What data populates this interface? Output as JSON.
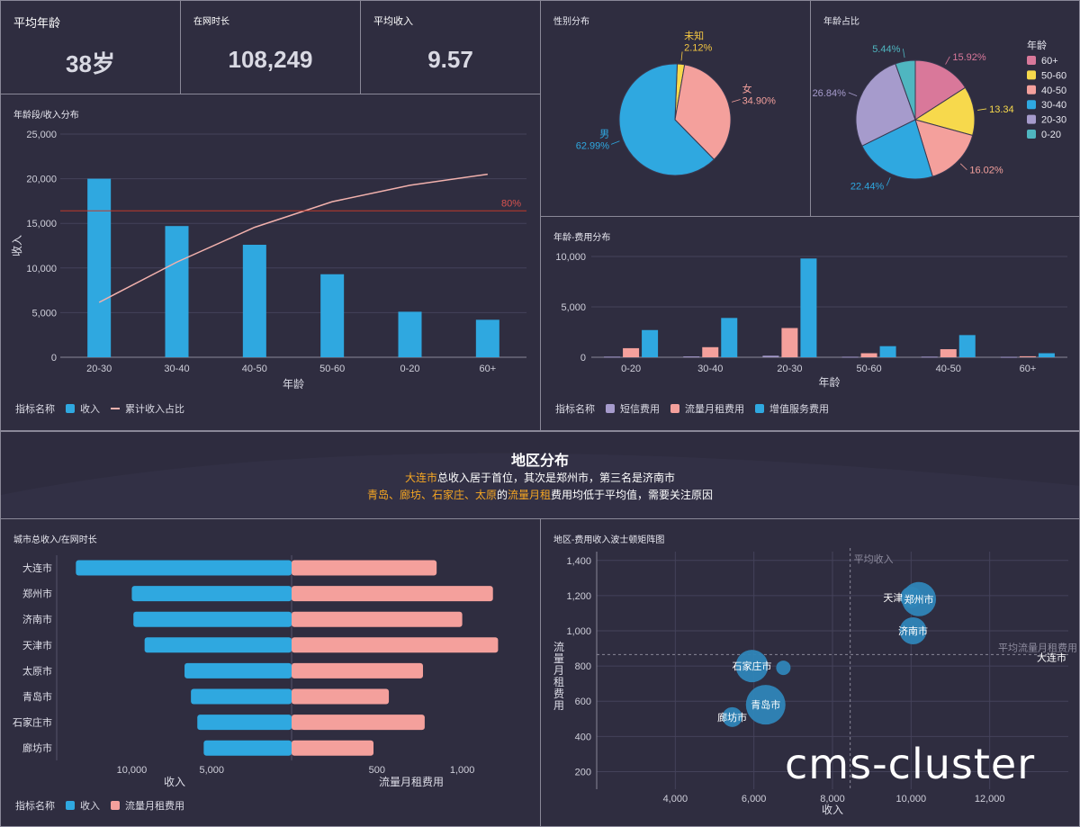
{
  "kpis": [
    {
      "label": "平均年龄",
      "value": "38岁"
    },
    {
      "label": "在网时长",
      "value": "108,249"
    },
    {
      "label": "平均收入",
      "value": "9.57"
    }
  ],
  "colors": {
    "blue": "#2fa8e0",
    "pink": "#f4a09c",
    "purple": "#a69bcc",
    "red": "#c0392b",
    "line": "#f2b1ad",
    "yellow": "#f7d94c",
    "rose": "#d9789a",
    "teal": "#4fb6c0",
    "orange": "#f5a623"
  },
  "panels": {
    "age_income": "年龄段/收入分布",
    "gender": "性别分布",
    "age_share": "年龄占比",
    "age_fee": "年龄-费用分布",
    "city_income": "城市总收入/在网时长",
    "region_matrix": "地区-费用收入波士顿矩阵图"
  },
  "banner": {
    "title": "地区分布",
    "line1_city": "大连市",
    "line1_rest": "总收入居于首位，其次是郑州市，第三名是济南市",
    "line2_cities": "青岛、廊坊、石家庄、太原",
    "line2_mid": "的",
    "line2_metric": "流量月租",
    "line2_rest": "费用均低于平均值，需要关注原因"
  },
  "watermark": "cms-cluster",
  "legends": {
    "title": "指标名称",
    "income": "收入",
    "cum_ratio": "累计收入占比",
    "sms": "短信费用",
    "data_rent": "流量月租费用",
    "vas": "增值服务费用"
  },
  "chart_data": [
    {
      "id": "age_income",
      "type": "bar",
      "categories": [
        "20-30",
        "30-40",
        "40-50",
        "50-60",
        "0-20",
        "60+"
      ],
      "series": [
        {
          "name": "收入",
          "values": [
            20000,
            14700,
            12600,
            9300,
            5100,
            4200
          ]
        },
        {
          "name": "累计收入占比",
          "type": "line",
          "values": [
            0.3,
            0.52,
            0.71,
            0.85,
            0.94,
            1.0
          ]
        }
      ],
      "threshold_label": "80%",
      "xlabel": "年龄",
      "ylabel": "收入",
      "yticks": [
        "0",
        "5,000",
        "10,000",
        "15,000",
        "20,000",
        "25,000"
      ],
      "ylim": [
        0,
        25000
      ]
    },
    {
      "id": "gender",
      "type": "pie",
      "slices": [
        {
          "label": "未知",
          "value": 2.12,
          "text": "2.12%"
        },
        {
          "label": "女",
          "value": 34.9,
          "text": "34.90%"
        },
        {
          "label": "男",
          "value": 62.99,
          "text": "62.99%"
        }
      ]
    },
    {
      "id": "age_share",
      "type": "pie",
      "legend_title": "年龄",
      "slices": [
        {
          "label": "60+",
          "value": 15.92,
          "text": "15.92%"
        },
        {
          "label": "50-60",
          "value": 13.34,
          "text": "13.34"
        },
        {
          "label": "40-50",
          "value": 16.02,
          "text": "16.02%"
        },
        {
          "label": "30-40",
          "value": 22.44,
          "text": "22.44%"
        },
        {
          "label": "20-30",
          "value": 26.84,
          "text": "26.84%"
        },
        {
          "label": "0-20",
          "value": 5.44,
          "text": "5.44%"
        }
      ]
    },
    {
      "id": "age_fee",
      "type": "bar",
      "categories": [
        "0-20",
        "30-40",
        "20-30",
        "50-60",
        "40-50",
        "60+"
      ],
      "series": [
        {
          "name": "短信费用",
          "values": [
            60,
            80,
            150,
            50,
            60,
            40
          ]
        },
        {
          "name": "流量月租费用",
          "values": [
            900,
            1000,
            2900,
            400,
            800,
            100
          ]
        },
        {
          "name": "增值服务费用",
          "values": [
            2700,
            3900,
            9800,
            1100,
            2200,
            400
          ]
        }
      ],
      "xlabel": "年龄",
      "yticks": [
        "0",
        "5,000",
        "10,000"
      ],
      "ylim": [
        0,
        10000
      ]
    },
    {
      "id": "city_income",
      "type": "bar",
      "categories": [
        "大连市",
        "郑州市",
        "济南市",
        "天津市",
        "太原市",
        "青岛市",
        "石家庄市",
        "廊坊市"
      ],
      "series": [
        {
          "name": "收入",
          "values": [
            13500,
            10000,
            9900,
            9200,
            6700,
            6300,
            5900,
            5500
          ]
        },
        {
          "name": "流量月租费用",
          "values": [
            850,
            1180,
            1000,
            1210,
            770,
            570,
            780,
            480
          ]
        }
      ],
      "left_ticks": [
        "10,000",
        "5,000"
      ],
      "right_ticks": [
        "500",
        "1,000"
      ],
      "left_label": "收入",
      "right_label": "流量月租费用"
    },
    {
      "id": "region_matrix",
      "type": "scatter",
      "points": [
        {
          "label": "天津市",
          "x": 10000,
          "y": 1190,
          "r": 12
        },
        {
          "label": "郑州市",
          "x": 10200,
          "y": 1180,
          "r": 19
        },
        {
          "label": "济南市",
          "x": 10050,
          "y": 1000,
          "r": 15
        },
        {
          "label": "大连市",
          "x": 13500,
          "y": 850,
          "r": 0
        },
        {
          "label": "石家庄市",
          "x": 5950,
          "y": 800,
          "r": 18
        },
        {
          "label": "",
          "x": 6750,
          "y": 790,
          "r": 8
        },
        {
          "label": "青岛市",
          "x": 6300,
          "y": 580,
          "r": 22
        },
        {
          "label": "廊坊市",
          "x": 5450,
          "y": 510,
          "r": 11
        }
      ],
      "xlabel": "收入",
      "ylabel": "流量月租费用",
      "xticks": [
        "4,000",
        "6,000",
        "8,000",
        "10,000",
        "12,000"
      ],
      "yticks": [
        "200",
        "400",
        "600",
        "800",
        "1,000",
        "1,200",
        "1,400"
      ],
      "xlim": [
        2000,
        14000
      ],
      "ylim": [
        100,
        1450
      ],
      "ref_x": {
        "value": 8450,
        "label": "平均收入"
      },
      "ref_y": {
        "value": 865,
        "label": "平均流量月租费用"
      }
    }
  ]
}
